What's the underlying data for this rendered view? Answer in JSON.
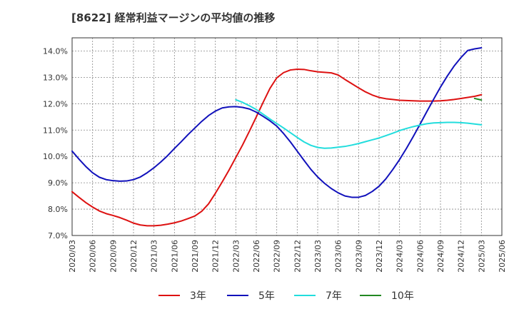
{
  "title": "[8622]  経常利益マージンの平均値の推移",
  "chart_data": {
    "type": "line",
    "title": "[8622]  経常利益マージンの平均値の推移",
    "xlabel": "",
    "ylabel": "",
    "ylim": [
      7.0,
      14.5
    ],
    "y_ticks": [
      7.0,
      8.0,
      9.0,
      10.0,
      11.0,
      12.0,
      13.0,
      14.0
    ],
    "y_tick_labels": [
      "7.0%",
      "8.0%",
      "9.0%",
      "10.0%",
      "11.0%",
      "12.0%",
      "13.0%",
      "14.0%"
    ],
    "x_ticks": [
      "2020/03",
      "2020/06",
      "2020/09",
      "2020/12",
      "2021/03",
      "2021/06",
      "2021/09",
      "2021/12",
      "2022/03",
      "2022/06",
      "2022/09",
      "2022/12",
      "2023/03",
      "2023/06",
      "2023/09",
      "2023/12",
      "2024/03",
      "2024/06",
      "2024/09",
      "2024/12",
      "2025/03",
      "2025/06"
    ],
    "grid": true,
    "legend_position": "bottom",
    "series": [
      {
        "name": "3年",
        "color": "#dd1111",
        "x": [
          "2020/03",
          "2020/04",
          "2020/05",
          "2020/06",
          "2020/07",
          "2020/08",
          "2020/09",
          "2020/10",
          "2020/11",
          "2020/12",
          "2021/01",
          "2021/02",
          "2021/03",
          "2021/04",
          "2021/05",
          "2021/06",
          "2021/07",
          "2021/08",
          "2021/09",
          "2021/10",
          "2021/11",
          "2021/12",
          "2022/01",
          "2022/02",
          "2022/03",
          "2022/04",
          "2022/05",
          "2022/06",
          "2022/07",
          "2022/08",
          "2022/09",
          "2022/10",
          "2022/11",
          "2022/12",
          "2023/01",
          "2023/02",
          "2023/03",
          "2023/04",
          "2023/05",
          "2023/06",
          "2023/07",
          "2023/08",
          "2023/09",
          "2023/10",
          "2023/11",
          "2023/12",
          "2024/01",
          "2024/02",
          "2024/03",
          "2024/04",
          "2024/05",
          "2024/06",
          "2024/07",
          "2024/08",
          "2024/09",
          "2024/10",
          "2024/11",
          "2024/12",
          "2025/01",
          "2025/02",
          "2025/03"
        ],
        "values": [
          8.66,
          8.45,
          8.25,
          8.08,
          7.93,
          7.83,
          7.76,
          7.68,
          7.58,
          7.47,
          7.4,
          7.37,
          7.37,
          7.39,
          7.43,
          7.48,
          7.55,
          7.64,
          7.74,
          7.92,
          8.2,
          8.6,
          9.03,
          9.48,
          9.96,
          10.44,
          10.96,
          11.5,
          12.05,
          12.58,
          12.98,
          13.18,
          13.28,
          13.31,
          13.3,
          13.25,
          13.21,
          13.19,
          13.17,
          13.09,
          12.92,
          12.76,
          12.6,
          12.45,
          12.33,
          12.24,
          12.19,
          12.16,
          12.13,
          12.12,
          12.11,
          12.1,
          12.1,
          12.1,
          12.11,
          12.13,
          12.16,
          12.2,
          12.24,
          12.28,
          12.34
        ]
      },
      {
        "name": "5年",
        "color": "#1111bb",
        "x": [
          "2020/03",
          "2020/04",
          "2020/05",
          "2020/06",
          "2020/07",
          "2020/08",
          "2020/09",
          "2020/10",
          "2020/11",
          "2020/12",
          "2021/01",
          "2021/02",
          "2021/03",
          "2021/04",
          "2021/05",
          "2021/06",
          "2021/07",
          "2021/08",
          "2021/09",
          "2021/10",
          "2021/11",
          "2021/12",
          "2022/01",
          "2022/02",
          "2022/03",
          "2022/04",
          "2022/05",
          "2022/06",
          "2022/07",
          "2022/08",
          "2022/09",
          "2022/10",
          "2022/11",
          "2022/12",
          "2023/01",
          "2023/02",
          "2023/03",
          "2023/04",
          "2023/05",
          "2023/06",
          "2023/07",
          "2023/08",
          "2023/09",
          "2023/10",
          "2023/11",
          "2023/12",
          "2024/01",
          "2024/02",
          "2024/03",
          "2024/04",
          "2024/05",
          "2024/06",
          "2024/07",
          "2024/08",
          "2024/09",
          "2024/10",
          "2024/11",
          "2024/12",
          "2025/01",
          "2025/02",
          "2025/03"
        ],
        "values": [
          10.2,
          9.9,
          9.62,
          9.38,
          9.21,
          9.12,
          9.08,
          9.06,
          9.07,
          9.12,
          9.22,
          9.38,
          9.57,
          9.79,
          10.03,
          10.3,
          10.56,
          10.83,
          11.08,
          11.33,
          11.55,
          11.72,
          11.84,
          11.88,
          11.89,
          11.86,
          11.8,
          11.68,
          11.52,
          11.35,
          11.15,
          10.87,
          10.55,
          10.2,
          9.85,
          9.51,
          9.22,
          8.98,
          8.78,
          8.62,
          8.5,
          8.45,
          8.45,
          8.52,
          8.67,
          8.87,
          9.15,
          9.5,
          9.88,
          10.3,
          10.75,
          11.22,
          11.7,
          12.17,
          12.63,
          13.05,
          13.43,
          13.75,
          14.02,
          14.08,
          14.12
        ]
      },
      {
        "name": "7年",
        "color": "#22dddd",
        "x": [
          "2022/03",
          "2022/04",
          "2022/05",
          "2022/06",
          "2022/07",
          "2022/08",
          "2022/09",
          "2022/10",
          "2022/11",
          "2022/12",
          "2023/01",
          "2023/02",
          "2023/03",
          "2023/04",
          "2023/05",
          "2023/06",
          "2023/07",
          "2023/08",
          "2023/09",
          "2023/10",
          "2023/11",
          "2023/12",
          "2024/01",
          "2024/02",
          "2024/03",
          "2024/04",
          "2024/05",
          "2024/06",
          "2024/07",
          "2024/08",
          "2024/09",
          "2024/10",
          "2024/11",
          "2024/12",
          "2025/01",
          "2025/02",
          "2025/03"
        ],
        "values": [
          12.15,
          12.05,
          11.92,
          11.78,
          11.6,
          11.42,
          11.25,
          11.08,
          10.9,
          10.72,
          10.55,
          10.42,
          10.34,
          10.31,
          10.32,
          10.35,
          10.38,
          10.43,
          10.49,
          10.56,
          10.63,
          10.7,
          10.79,
          10.88,
          10.98,
          11.06,
          11.13,
          11.19,
          11.24,
          11.27,
          11.28,
          11.29,
          11.29,
          11.28,
          11.26,
          11.23,
          11.2
        ]
      },
      {
        "name": "10年",
        "color": "#228822",
        "x": [
          "2025/02",
          "2025/03"
        ],
        "values": [
          12.2,
          12.14
        ]
      }
    ]
  }
}
